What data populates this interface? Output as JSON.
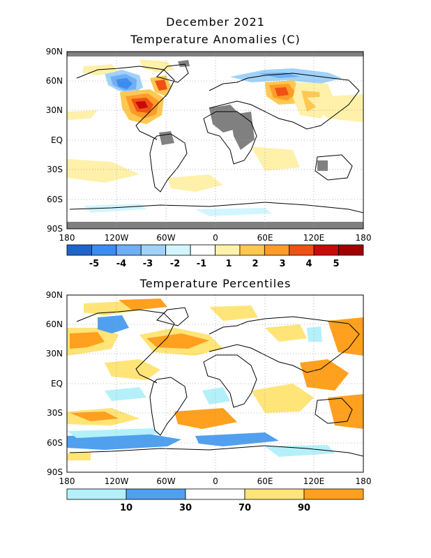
{
  "figure": {
    "month_title": "December 2021",
    "panel1_title": "Temperature Anomalies (C)",
    "panel2_title": "Temperature Percentiles"
  },
  "axes": {
    "lat_labels": [
      "90N",
      "60N",
      "30N",
      "EQ",
      "30S",
      "60S",
      "90S"
    ],
    "lon_labels": [
      "180",
      "120W",
      "60W",
      "0",
      "60E",
      "120E",
      "180"
    ]
  },
  "anomaly_colorbar": {
    "colors": [
      "#1f64c8",
      "#3c8cf0",
      "#6eaff5",
      "#a0d2fa",
      "#d2f5ff",
      "#ffffff",
      "#fff0aa",
      "#ffc850",
      "#ff9b28",
      "#f05014",
      "#c80a0a",
      "#a00000"
    ],
    "labels": [
      "-5",
      "-4",
      "-3",
      "-2",
      "-1",
      "1",
      "2",
      "3",
      "4",
      "5"
    ]
  },
  "percentile_colorbar": {
    "colors": [
      "#b4f0fa",
      "#50a0f0",
      "#ffffff",
      "#ffe478",
      "#ffa01e"
    ],
    "labels": [
      "10",
      "30",
      "70",
      "90"
    ]
  },
  "legend_missing_color": "#808080"
}
